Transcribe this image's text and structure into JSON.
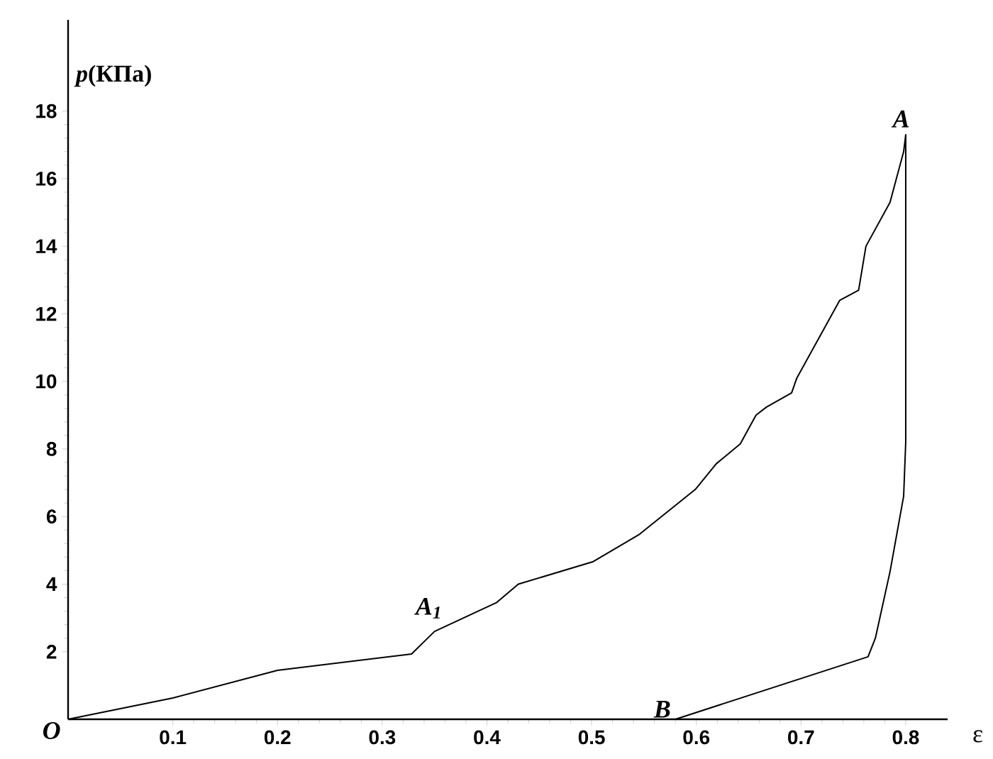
{
  "chart_data": {
    "type": "line",
    "xlabel": "ε",
    "ylabel": "*p*(КПа)",
    "xlim": [
      0,
      0.84
    ],
    "ylim": [
      0,
      20.7
    ],
    "xticks": [
      0.1,
      0.2,
      0.3,
      0.4,
      0.5,
      0.6,
      0.7,
      0.8
    ],
    "yticks": [
      2,
      4,
      6,
      8,
      10,
      12,
      14,
      16,
      18
    ],
    "marker": "none",
    "line_style": "solid",
    "series": [
      {
        "color": "#000000",
        "x": [
          0,
          0.1,
          0.2,
          0.328,
          0.35,
          0.409,
          0.43,
          0.501,
          0.545,
          0.599,
          0.619,
          0.642,
          0.657,
          0.667,
          0.691,
          0.696,
          0.737,
          0.755,
          0.762,
          0.785,
          0.798,
          0.8,
          0.8,
          0.798,
          0.785,
          0.771,
          0.764,
          0.58
        ],
        "values": [
          0,
          0.63,
          1.45,
          1.93,
          2.6,
          3.45,
          4.0,
          4.66,
          5.46,
          6.8,
          7.56,
          8.15,
          9.0,
          9.24,
          9.66,
          10.1,
          12.4,
          12.7,
          14.0,
          15.3,
          16.8,
          17.3,
          8.2,
          6.6,
          4.37,
          2.4,
          1.85,
          0
        ]
      }
    ],
    "annotations": [
      {
        "text": "A",
        "x": 0.8,
        "y": 17.3
      },
      {
        "text": "A$_{1}$",
        "x": 0.35,
        "y": 2.6
      },
      {
        "text": "B",
        "x": 0.58,
        "y": 0
      },
      {
        "text": "O",
        "x": 0,
        "y": 0
      }
    ]
  }
}
